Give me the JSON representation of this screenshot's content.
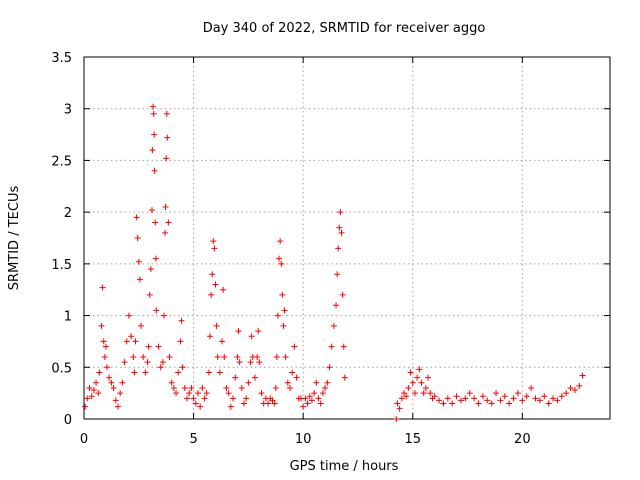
{
  "chart_data": {
    "type": "scatter",
    "title": "Day 340 of 2022, SRMTID for receiver aggo",
    "xlabel": "GPS time / hours",
    "ylabel": "SRMTID / TECUs",
    "xlim": [
      0,
      24
    ],
    "ylim": [
      0,
      3.5
    ],
    "grid": true,
    "x_ticks": [
      0,
      5,
      10,
      15,
      20
    ],
    "x_tick_labels": [
      "0",
      "5",
      "10",
      "15",
      "20"
    ],
    "y_ticks": [
      0,
      0.5,
      1,
      1.5,
      2,
      2.5,
      3,
      3.5
    ],
    "y_tick_labels": [
      "0",
      "0.5",
      "1",
      "1.5",
      "2",
      "2.5",
      "3",
      "3.5"
    ],
    "marker": "+",
    "color": "#ff0000",
    "series": [
      {
        "name": "SRMTID",
        "points": [
          [
            0.05,
            0.12
          ],
          [
            0.15,
            0.2
          ],
          [
            0.25,
            0.3
          ],
          [
            0.35,
            0.22
          ],
          [
            0.45,
            0.28
          ],
          [
            0.55,
            0.35
          ],
          [
            0.65,
            0.25
          ],
          [
            0.7,
            0.45
          ],
          [
            0.8,
            0.9
          ],
          [
            0.85,
            1.27
          ],
          [
            0.9,
            0.75
          ],
          [
            0.95,
            0.6
          ],
          [
            1.0,
            0.7
          ],
          [
            1.05,
            0.5
          ],
          [
            1.15,
            0.4
          ],
          [
            1.25,
            0.35
          ],
          [
            1.35,
            0.3
          ],
          [
            1.45,
            0.18
          ],
          [
            1.55,
            0.12
          ],
          [
            1.65,
            0.25
          ],
          [
            1.75,
            0.35
          ],
          [
            1.85,
            0.55
          ],
          [
            1.95,
            0.75
          ],
          [
            2.05,
            1.0
          ],
          [
            2.15,
            0.8
          ],
          [
            2.25,
            0.6
          ],
          [
            2.3,
            0.45
          ],
          [
            2.35,
            0.75
          ],
          [
            2.4,
            1.95
          ],
          [
            2.45,
            1.75
          ],
          [
            2.5,
            1.52
          ],
          [
            2.55,
            1.35
          ],
          [
            2.6,
            0.9
          ],
          [
            2.7,
            0.6
          ],
          [
            2.8,
            0.45
          ],
          [
            2.9,
            0.55
          ],
          [
            2.95,
            0.7
          ],
          [
            3.0,
            1.2
          ],
          [
            3.05,
            1.45
          ],
          [
            3.1,
            2.02
          ],
          [
            3.12,
            2.6
          ],
          [
            3.15,
            3.02
          ],
          [
            3.18,
            2.95
          ],
          [
            3.2,
            2.75
          ],
          [
            3.22,
            2.4
          ],
          [
            3.25,
            1.9
          ],
          [
            3.28,
            1.55
          ],
          [
            3.3,
            1.05
          ],
          [
            3.4,
            0.7
          ],
          [
            3.5,
            0.5
          ],
          [
            3.6,
            0.55
          ],
          [
            3.65,
            1.0
          ],
          [
            3.7,
            1.8
          ],
          [
            3.72,
            2.05
          ],
          [
            3.75,
            2.52
          ],
          [
            3.78,
            2.95
          ],
          [
            3.8,
            2.72
          ],
          [
            3.85,
            1.9
          ],
          [
            3.9,
            0.6
          ],
          [
            4.0,
            0.35
          ],
          [
            4.1,
            0.3
          ],
          [
            4.2,
            0.25
          ],
          [
            4.3,
            0.45
          ],
          [
            4.4,
            0.75
          ],
          [
            4.45,
            0.95
          ],
          [
            4.5,
            0.5
          ],
          [
            4.6,
            0.3
          ],
          [
            4.7,
            0.2
          ],
          [
            4.8,
            0.25
          ],
          [
            4.9,
            0.3
          ],
          [
            5.0,
            0.2
          ],
          [
            5.1,
            0.15
          ],
          [
            5.2,
            0.25
          ],
          [
            5.3,
            0.12
          ],
          [
            5.4,
            0.3
          ],
          [
            5.5,
            0.2
          ],
          [
            5.6,
            0.25
          ],
          [
            5.7,
            0.45
          ],
          [
            5.75,
            0.8
          ],
          [
            5.8,
            1.2
          ],
          [
            5.85,
            1.4
          ],
          [
            5.9,
            1.72
          ],
          [
            5.95,
            1.65
          ],
          [
            6.0,
            1.3
          ],
          [
            6.05,
            0.9
          ],
          [
            6.1,
            0.6
          ],
          [
            6.2,
            0.45
          ],
          [
            6.3,
            0.75
          ],
          [
            6.35,
            1.25
          ],
          [
            6.4,
            0.6
          ],
          [
            6.5,
            0.3
          ],
          [
            6.6,
            0.25
          ],
          [
            6.7,
            0.12
          ],
          [
            6.8,
            0.2
          ],
          [
            6.9,
            0.4
          ],
          [
            7.0,
            0.6
          ],
          [
            7.05,
            0.85
          ],
          [
            7.1,
            0.55
          ],
          [
            7.2,
            0.3
          ],
          [
            7.3,
            0.15
          ],
          [
            7.4,
            0.2
          ],
          [
            7.5,
            0.35
          ],
          [
            7.6,
            0.55
          ],
          [
            7.65,
            0.8
          ],
          [
            7.7,
            0.6
          ],
          [
            7.8,
            0.4
          ],
          [
            7.9,
            0.6
          ],
          [
            7.95,
            0.85
          ],
          [
            8.0,
            0.55
          ],
          [
            8.1,
            0.25
          ],
          [
            8.2,
            0.15
          ],
          [
            8.3,
            0.2
          ],
          [
            8.4,
            0.15
          ],
          [
            8.5,
            0.2
          ],
          [
            8.6,
            0.18
          ],
          [
            8.7,
            0.15
          ],
          [
            8.75,
            0.3
          ],
          [
            8.8,
            0.6
          ],
          [
            8.85,
            1.0
          ],
          [
            8.9,
            1.55
          ],
          [
            8.95,
            1.72
          ],
          [
            9.0,
            1.5
          ],
          [
            9.05,
            1.2
          ],
          [
            9.1,
            0.9
          ],
          [
            9.15,
            1.05
          ],
          [
            9.2,
            0.6
          ],
          [
            9.3,
            0.35
          ],
          [
            9.4,
            0.3
          ],
          [
            9.5,
            0.45
          ],
          [
            9.6,
            0.7
          ],
          [
            9.7,
            0.4
          ],
          [
            9.8,
            0.2
          ],
          [
            9.9,
            0.2
          ],
          [
            10.0,
            0.12
          ],
          [
            10.1,
            0.2
          ],
          [
            10.2,
            0.15
          ],
          [
            10.3,
            0.22
          ],
          [
            10.4,
            0.18
          ],
          [
            10.5,
            0.25
          ],
          [
            10.6,
            0.35
          ],
          [
            10.7,
            0.2
          ],
          [
            10.8,
            0.15
          ],
          [
            10.9,
            0.25
          ],
          [
            11.0,
            0.3
          ],
          [
            11.1,
            0.35
          ],
          [
            11.2,
            0.5
          ],
          [
            11.3,
            0.7
          ],
          [
            11.4,
            0.9
          ],
          [
            11.5,
            1.1
          ],
          [
            11.55,
            1.4
          ],
          [
            11.6,
            1.65
          ],
          [
            11.65,
            1.85
          ],
          [
            11.7,
            2.0
          ],
          [
            11.75,
            1.8
          ],
          [
            11.8,
            1.2
          ],
          [
            11.85,
            0.7
          ],
          [
            11.9,
            0.4
          ],
          [
            14.25,
            0.0
          ],
          [
            14.3,
            0.15
          ],
          [
            14.4,
            0.1
          ],
          [
            14.5,
            0.2
          ],
          [
            14.6,
            0.25
          ],
          [
            14.7,
            0.22
          ],
          [
            14.8,
            0.3
          ],
          [
            14.9,
            0.45
          ],
          [
            15.0,
            0.35
          ],
          [
            15.1,
            0.25
          ],
          [
            15.2,
            0.4
          ],
          [
            15.3,
            0.48
          ],
          [
            15.4,
            0.35
          ],
          [
            15.5,
            0.25
          ],
          [
            15.6,
            0.3
          ],
          [
            15.7,
            0.4
          ],
          [
            15.8,
            0.25
          ],
          [
            15.9,
            0.2
          ],
          [
            16.0,
            0.22
          ],
          [
            16.2,
            0.18
          ],
          [
            16.4,
            0.15
          ],
          [
            16.6,
            0.2
          ],
          [
            16.8,
            0.15
          ],
          [
            17.0,
            0.22
          ],
          [
            17.2,
            0.18
          ],
          [
            17.4,
            0.2
          ],
          [
            17.6,
            0.25
          ],
          [
            17.8,
            0.2
          ],
          [
            18.0,
            0.15
          ],
          [
            18.2,
            0.22
          ],
          [
            18.4,
            0.18
          ],
          [
            18.6,
            0.15
          ],
          [
            18.8,
            0.25
          ],
          [
            19.0,
            0.18
          ],
          [
            19.2,
            0.22
          ],
          [
            19.4,
            0.15
          ],
          [
            19.6,
            0.2
          ],
          [
            19.8,
            0.25
          ],
          [
            20.0,
            0.18
          ],
          [
            20.2,
            0.22
          ],
          [
            20.4,
            0.3
          ],
          [
            20.6,
            0.2
          ],
          [
            20.8,
            0.18
          ],
          [
            21.0,
            0.22
          ],
          [
            21.2,
            0.15
          ],
          [
            21.4,
            0.2
          ],
          [
            21.6,
            0.18
          ],
          [
            21.8,
            0.22
          ],
          [
            22.0,
            0.25
          ],
          [
            22.2,
            0.3
          ],
          [
            22.4,
            0.28
          ],
          [
            22.6,
            0.32
          ],
          [
            22.75,
            0.42
          ]
        ]
      }
    ]
  }
}
